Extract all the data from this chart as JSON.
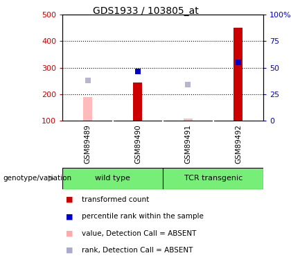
{
  "title": "GDS1933 / 103805_at",
  "samples": [
    "GSM89489",
    "GSM89490",
    "GSM89491",
    "GSM89492"
  ],
  "bar_positions": [
    1,
    2,
    3,
    4
  ],
  "red_values": [
    190,
    243,
    110,
    450
  ],
  "blue_values": [
    null,
    285,
    null,
    320
  ],
  "light_blue_values": [
    252,
    null,
    237,
    null
  ],
  "is_absent": [
    true,
    false,
    true,
    false
  ],
  "ylim_left": [
    100,
    500
  ],
  "ylim_right": [
    0,
    100
  ],
  "left_ticks": [
    100,
    200,
    300,
    400,
    500
  ],
  "right_ticks": [
    0,
    25,
    50,
    75,
    100
  ],
  "right_tick_labels": [
    "0",
    "25",
    "50",
    "75",
    "100%"
  ],
  "left_color": "#cc0000",
  "right_color": "#0000cc",
  "bar_width": 0.18,
  "marker_size": 6,
  "group_label_text": "genotype/variation",
  "wild_type_label": "wild type",
  "tcr_label": "TCR transgenic",
  "legend_labels": [
    "transformed count",
    "percentile rank within the sample",
    "value, Detection Call = ABSENT",
    "rank, Detection Call = ABSENT"
  ],
  "legend_colors": [
    "#cc0000",
    "#0000cc",
    "#ffaaaa",
    "#aaaacc"
  ]
}
